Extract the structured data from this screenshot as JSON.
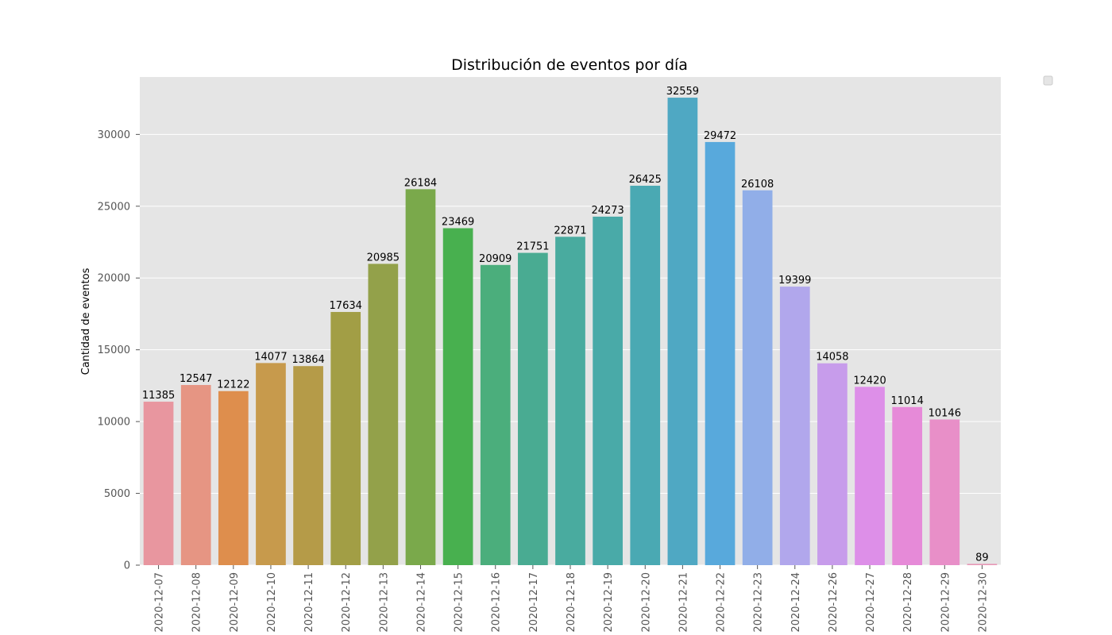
{
  "chart_data": {
    "type": "bar",
    "title": "Distribución de eventos por día",
    "xlabel": "",
    "ylabel": "Cantidad de eventos",
    "ylim": [
      0,
      34000
    ],
    "yticks": [
      0,
      5000,
      10000,
      15000,
      20000,
      25000,
      30000
    ],
    "grid": true,
    "legend": "top-right (empty)",
    "categories": [
      "2020-12-07",
      "2020-12-08",
      "2020-12-09",
      "2020-12-10",
      "2020-12-11",
      "2020-12-12",
      "2020-12-13",
      "2020-12-14",
      "2020-12-15",
      "2020-12-16",
      "2020-12-17",
      "2020-12-18",
      "2020-12-19",
      "2020-12-20",
      "2020-12-21",
      "2020-12-22",
      "2020-12-23",
      "2020-12-24",
      "2020-12-26",
      "2020-12-27",
      "2020-12-28",
      "2020-12-29",
      "2020-12-30"
    ],
    "values": [
      11385,
      12547,
      12122,
      14077,
      13864,
      17634,
      20985,
      26184,
      23469,
      20909,
      21751,
      22871,
      24273,
      26425,
      32559,
      29472,
      26108,
      19399,
      14058,
      12420,
      11014,
      10146,
      89
    ],
    "colors": [
      "#e8969f",
      "#e69583",
      "#de8e4d",
      "#c79a4c",
      "#b59b48",
      "#a29e45",
      "#93a14a",
      "#7aa94b",
      "#48b04f",
      "#4bae7c",
      "#49ab92",
      "#49ab9f",
      "#49aaa8",
      "#4aa9b3",
      "#4fa8c3",
      "#58a9dc",
      "#91aee8",
      "#b1a7ec",
      "#c79ceb",
      "#dd8fe8",
      "#e68ad8",
      "#e88fc8",
      "#e898b6"
    ],
    "plot_background": "#e5e5e5",
    "grid_color": "#ffffff"
  }
}
